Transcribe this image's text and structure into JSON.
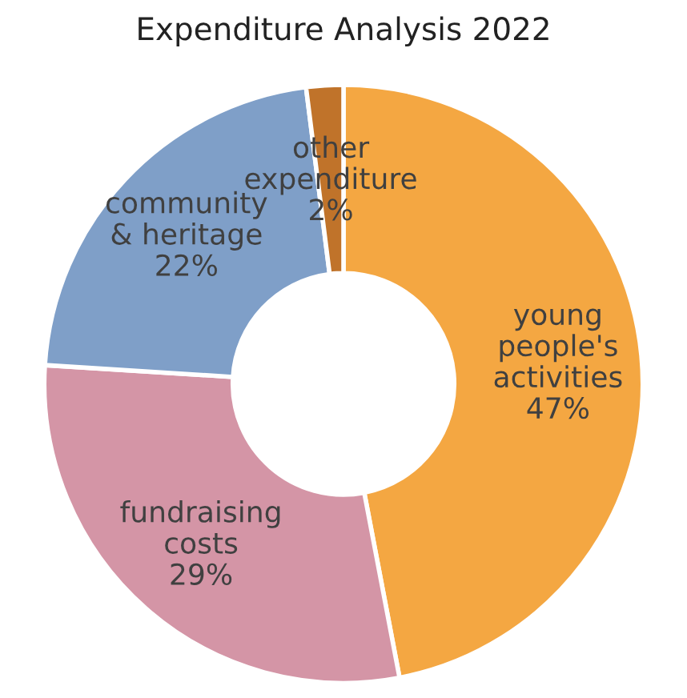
{
  "chart_data": {
    "type": "donut",
    "title": "Expenditure Analysis 2022",
    "categories": [
      "young\npeople's\nactivities",
      "fundraising\ncosts",
      "community\n& heritage",
      "other\nexpenditure"
    ],
    "values": [
      47,
      29,
      22,
      2
    ],
    "value_labels": [
      "47%",
      "29%",
      "22%",
      "2%"
    ],
    "colors": [
      "#f4a742",
      "#d495a6",
      "#7f9fc8",
      "#c0732a"
    ],
    "legend": false
  }
}
